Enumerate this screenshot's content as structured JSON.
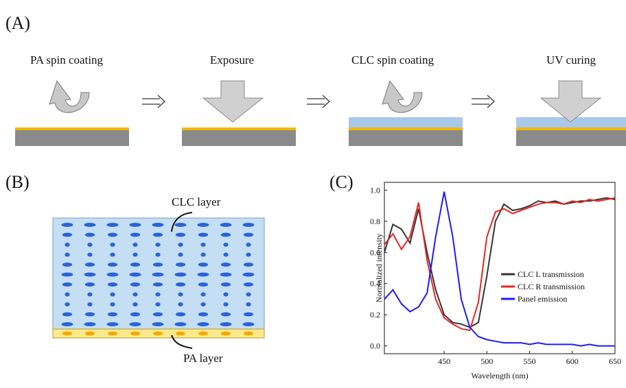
{
  "panels": {
    "a": {
      "label": "(A)",
      "steps": [
        "PA spin coating",
        "Exposure",
        "CLC spin coating",
        "UV curing"
      ]
    },
    "b": {
      "label": "(B)",
      "top_label": "CLC layer",
      "bottom_label": "PA layer"
    },
    "c": {
      "label": "(C)"
    }
  },
  "chart_data": {
    "type": "line",
    "x_label": "Wavelength (nm)",
    "y_label": "Normalized intensity",
    "x": [
      380,
      390,
      400,
      410,
      420,
      430,
      440,
      450,
      460,
      470,
      480,
      490,
      500,
      510,
      520,
      530,
      540,
      550,
      560,
      570,
      580,
      590,
      600,
      610,
      620,
      630,
      640,
      650
    ],
    "series": [
      {
        "name": "CLC L transmission",
        "color": "#333333",
        "values": [
          0.6,
          0.78,
          0.75,
          0.66,
          0.88,
          0.6,
          0.36,
          0.2,
          0.15,
          0.14,
          0.12,
          0.15,
          0.45,
          0.8,
          0.91,
          0.87,
          0.88,
          0.9,
          0.93,
          0.92,
          0.93,
          0.91,
          0.92,
          0.93,
          0.93,
          0.94,
          0.95,
          0.94
        ]
      },
      {
        "name": "CLC R transmission",
        "color": "#ee2222",
        "values": [
          0.65,
          0.72,
          0.62,
          0.7,
          0.92,
          0.55,
          0.3,
          0.18,
          0.14,
          0.11,
          0.1,
          0.28,
          0.7,
          0.86,
          0.88,
          0.85,
          0.87,
          0.89,
          0.91,
          0.92,
          0.92,
          0.91,
          0.93,
          0.92,
          0.94,
          0.93,
          0.94,
          0.95
        ]
      },
      {
        "name": "Panel emission",
        "color": "#1a1aff",
        "values": [
          0.3,
          0.36,
          0.27,
          0.22,
          0.25,
          0.34,
          0.7,
          0.99,
          0.7,
          0.3,
          0.12,
          0.06,
          0.04,
          0.03,
          0.02,
          0.02,
          0.02,
          0.01,
          0.02,
          0.01,
          0.01,
          0.01,
          0.01,
          0.0,
          0.01,
          0.0,
          0.0,
          0.0
        ]
      }
    ],
    "xlim": [
      380,
      650
    ],
    "xticks": [
      450,
      500,
      550,
      600,
      650
    ],
    "ylim": [
      -0.05,
      1.05
    ],
    "yticks": [
      {
        "value": 0,
        "label": "0.0"
      },
      0.2,
      0.4,
      0.6,
      0.8,
      {
        "value": 1,
        "label": "1.0"
      }
    ],
    "legend": "right"
  }
}
